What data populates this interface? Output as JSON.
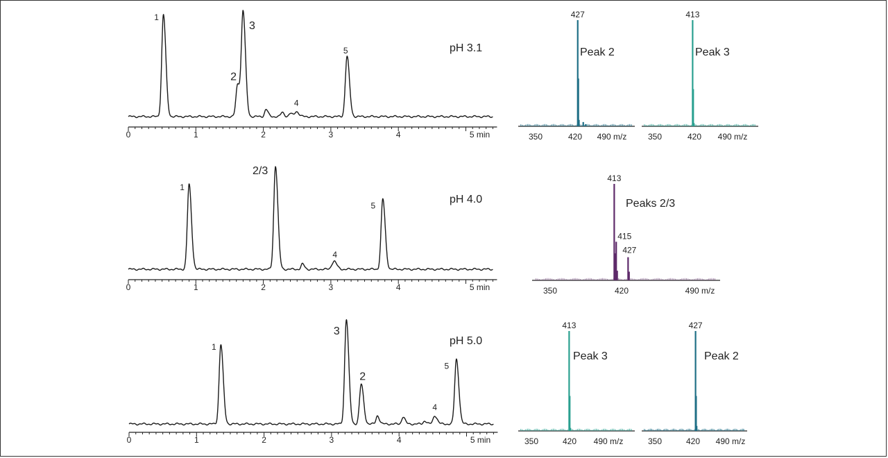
{
  "chart_data": [
    {
      "type": "line",
      "title": "pH 3.1",
      "x_tick_labels": [
        "0",
        "1",
        "2",
        "3",
        "4",
        "5 min"
      ],
      "xlim": [
        0,
        5.4
      ],
      "peaks": [
        {
          "label": "1",
          "x": 0.52,
          "height": 0.98,
          "color": "#2a3a55"
        },
        {
          "label": "2",
          "x": 1.62,
          "height": 0.31,
          "color": "#2a7a9a"
        },
        {
          "label": "3",
          "x": 1.7,
          "height": 1.0,
          "color": "#2aa0a6"
        },
        {
          "label": "4",
          "x": 2.49,
          "height": 0.05,
          "color": "#2a3a55"
        },
        {
          "label": "5",
          "x": 3.24,
          "height": 0.58,
          "color": "#2a3a55"
        }
      ],
      "minor_peaks": [
        {
          "x": 2.04,
          "height": 0.07
        },
        {
          "x": 2.28,
          "height": 0.04
        },
        {
          "x": 2.4,
          "height": 0.03
        }
      ]
    },
    {
      "type": "bar",
      "title": "Peak 2",
      "x_tick_labels": [
        "350",
        "420",
        "490 m/z"
      ],
      "xlim": [
        330,
        520
      ],
      "color": "#1f6f86",
      "values": [
        {
          "mz": 427,
          "rel": 1.0,
          "label": "427"
        },
        {
          "mz": 428,
          "rel": 0.45
        },
        {
          "mz": 429,
          "rel": 0.06
        },
        {
          "mz": 436,
          "rel": 0.04
        },
        {
          "mz": 440,
          "rel": 0.02
        }
      ]
    },
    {
      "type": "bar",
      "title": "Peak 3",
      "x_tick_labels": [
        "350",
        "420",
        "490 m/z"
      ],
      "xlim": [
        330,
        520
      ],
      "color": "#2aa090",
      "values": [
        {
          "mz": 413,
          "rel": 1.0,
          "label": "413"
        },
        {
          "mz": 414,
          "rel": 0.35
        },
        {
          "mz": 415,
          "rel": 0.03
        }
      ]
    },
    {
      "type": "line",
      "title": "pH 4.0",
      "x_tick_labels": [
        "0",
        "1",
        "2",
        "3",
        "4",
        "5 min"
      ],
      "xlim": [
        0,
        5.4
      ],
      "peaks": [
        {
          "label": "1",
          "x": 0.9,
          "height": 0.82,
          "color": "#2a3a55"
        },
        {
          "label": "2/3",
          "x": 2.18,
          "height": 1.0,
          "color": "#6b2f6b"
        },
        {
          "label": "4",
          "x": 3.06,
          "height": 0.06,
          "color": "#2a3a55"
        },
        {
          "label": "5",
          "x": 3.77,
          "height": 0.68,
          "color": "#2a3a55"
        }
      ],
      "minor_peaks": [
        {
          "x": 2.58,
          "height": 0.05
        },
        {
          "x": 3.02,
          "height": 0.04
        }
      ]
    },
    {
      "type": "bar",
      "title": "Peaks 2/3",
      "x_tick_labels": [
        "350",
        "420",
        "490 m/z"
      ],
      "xlim": [
        330,
        520
      ],
      "color": "#5e2a6a",
      "values": [
        {
          "mz": 413,
          "rel": 1.0,
          "label": "413"
        },
        {
          "mz": 414,
          "rel": 0.28
        },
        {
          "mz": 415,
          "rel": 0.4,
          "label": "415"
        },
        {
          "mz": 416,
          "rel": 0.1
        },
        {
          "mz": 427,
          "rel": 0.24,
          "label": "427"
        },
        {
          "mz": 428,
          "rel": 0.09
        }
      ]
    },
    {
      "type": "line",
      "title": "pH 5.0",
      "x_tick_labels": [
        "0",
        "1",
        "2",
        "3",
        "4",
        "5 min"
      ],
      "xlim": [
        0,
        5.4
      ],
      "peaks": [
        {
          "label": "1",
          "x": 1.36,
          "height": 0.76,
          "color": "#2a3a55"
        },
        {
          "label": "3",
          "x": 3.22,
          "height": 1.0,
          "color": "#2aa0a6"
        },
        {
          "label": "2",
          "x": 3.44,
          "height": 0.38,
          "color": "#2a7a9a"
        },
        {
          "label": "4",
          "x": 4.53,
          "height": 0.08,
          "color": "#2a3a55"
        },
        {
          "label": "5",
          "x": 4.85,
          "height": 0.62,
          "color": "#2a3a55"
        }
      ],
      "minor_peaks": [
        {
          "x": 3.68,
          "height": 0.08
        },
        {
          "x": 4.06,
          "height": 0.07
        },
        {
          "x": 4.38,
          "height": 0.03
        }
      ]
    },
    {
      "type": "bar",
      "title": "Peak 3",
      "x_tick_labels": [
        "350",
        "420",
        "490 m/z"
      ],
      "xlim": [
        330,
        520
      ],
      "color": "#2aa090",
      "values": [
        {
          "mz": 413,
          "rel": 1.0,
          "label": "413"
        },
        {
          "mz": 414,
          "rel": 0.35
        },
        {
          "mz": 415,
          "rel": 0.03
        }
      ]
    },
    {
      "type": "bar",
      "title": "Peak 2",
      "x_tick_labels": [
        "350",
        "420",
        "490 m/z"
      ],
      "xlim": [
        330,
        520
      ],
      "color": "#1f6f86",
      "values": [
        {
          "mz": 427,
          "rel": 1.0,
          "label": "427"
        },
        {
          "mz": 428,
          "rel": 0.35
        },
        {
          "mz": 429,
          "rel": 0.05
        }
      ]
    }
  ]
}
